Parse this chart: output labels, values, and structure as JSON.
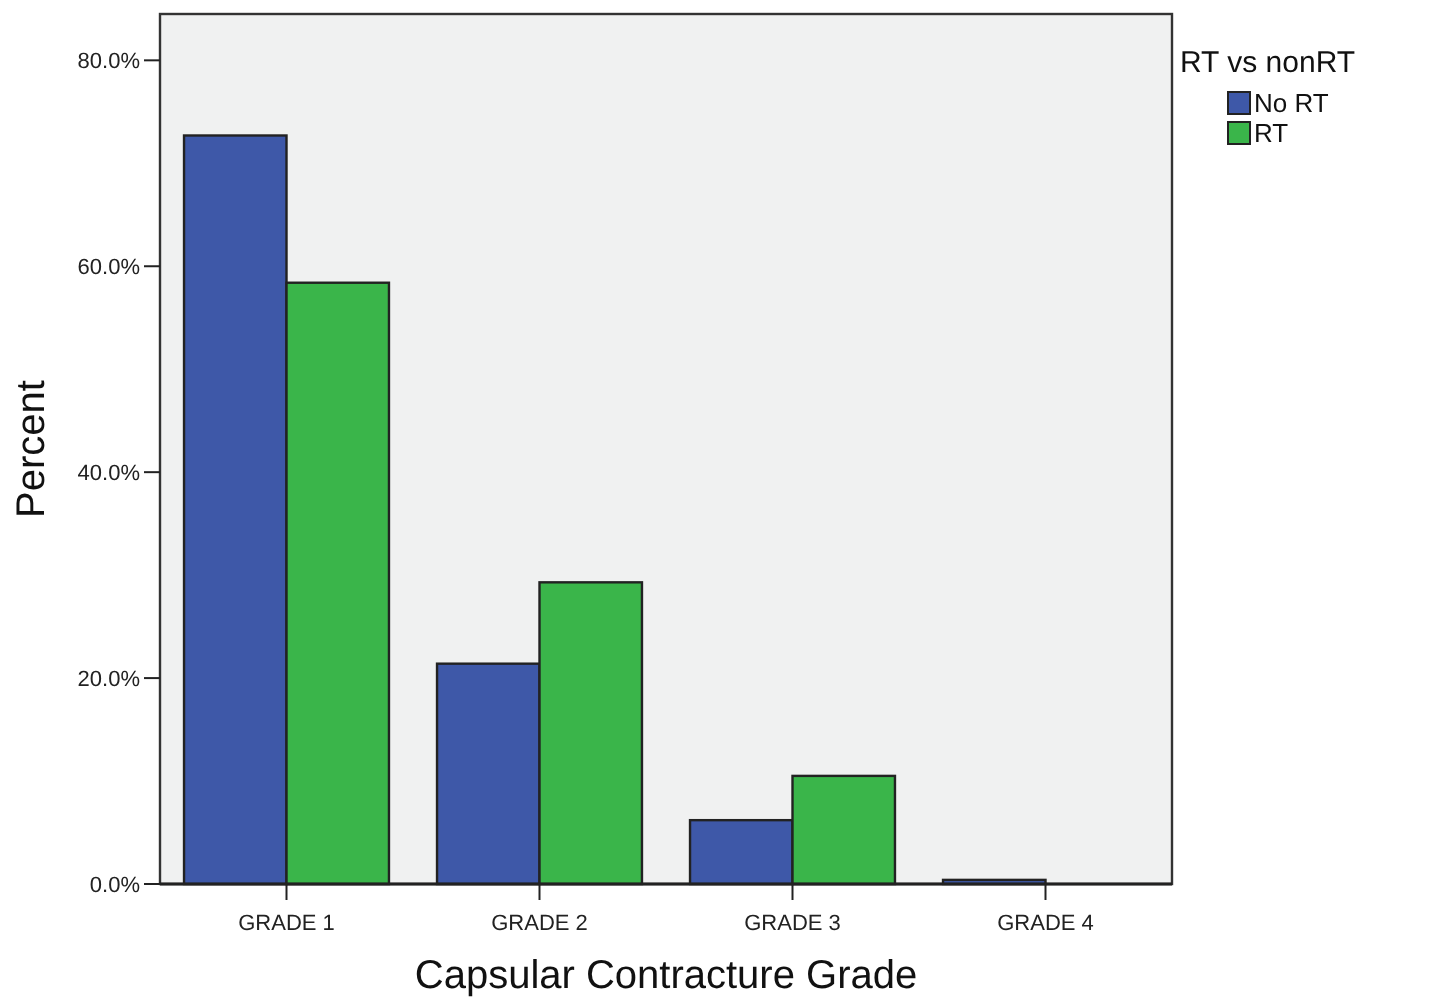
{
  "chart_data": {
    "type": "bar",
    "xlabel": "Capsular Contracture Grade",
    "ylabel": "Percent",
    "legend_title": "RT vs nonRT",
    "legend": "top right",
    "categories": [
      "GRADE 1",
      "GRADE 2",
      "GRADE 3",
      "GRADE 4"
    ],
    "series": [
      {
        "name": "No RT",
        "color": "#3e58a8",
        "values": [
          72.7,
          21.4,
          6.2,
          0.4
        ]
      },
      {
        "name": "RT",
        "color": "#3ab54a",
        "values": [
          58.4,
          29.3,
          10.5,
          0
        ]
      }
    ],
    "ylim": [
      0,
      84.5
    ],
    "yticks": [
      {
        "value": 0,
        "label": "0.0%"
      },
      {
        "value": 20,
        "label": "20.0%"
      },
      {
        "value": 40,
        "label": "40.0%"
      },
      {
        "value": 60,
        "label": "60.0%"
      },
      {
        "value": 80,
        "label": "80.0%"
      }
    ],
    "grid": false
  }
}
